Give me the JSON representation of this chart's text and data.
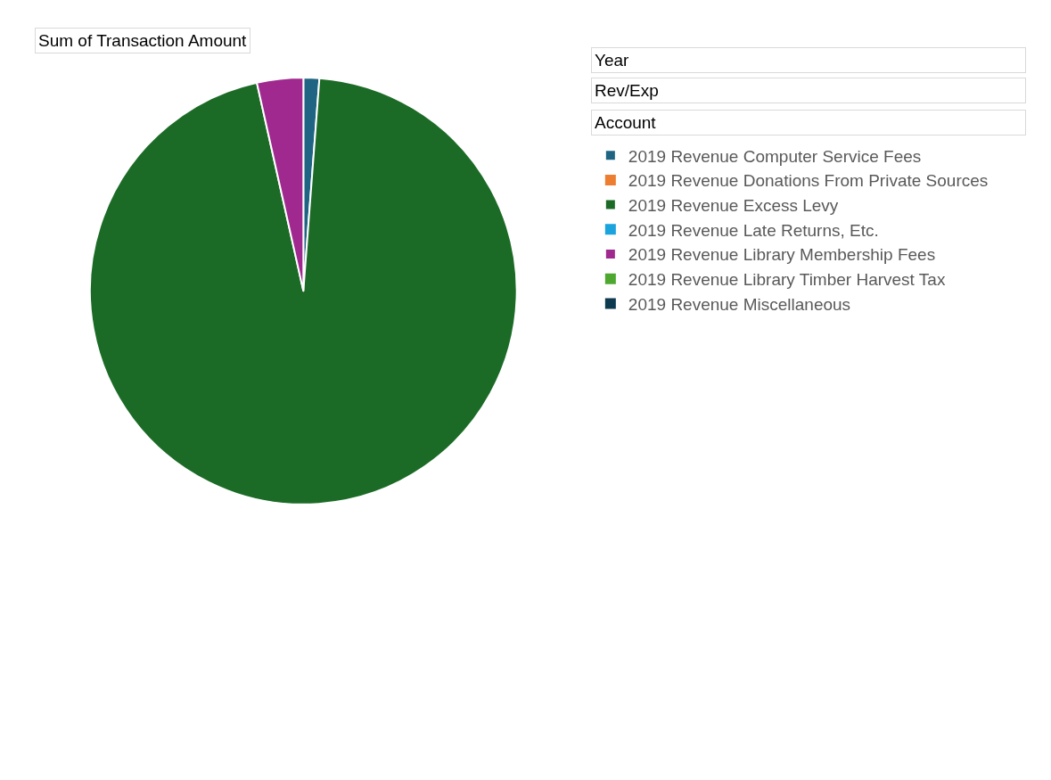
{
  "chart_data": {
    "type": "pie",
    "annotations": [
      "Sum of Transaction Amount",
      "Year",
      "Rev/Exp",
      "Account"
    ],
    "categories": [
      "2019 Revenue Computer Service Fees",
      "2019 Revenue Donations From Private Sources",
      "2019 Revenue Excess Levy",
      "2019 Revenue Late Returns, Etc.",
      "2019 Revenue Library Membership Fees",
      "2019 Revenue Library Timber Harvest Tax",
      "2019 Revenue Miscellaneous"
    ],
    "values": [
      1.2,
      0,
      95.3,
      0,
      3.5,
      0,
      0
    ],
    "colors": [
      "#1f6482",
      "#ed7d31",
      "#1b6b26",
      "#1aa3dd",
      "#a0298f",
      "#4ea72e",
      "#0e3a4f"
    ],
    "legend": "right"
  }
}
